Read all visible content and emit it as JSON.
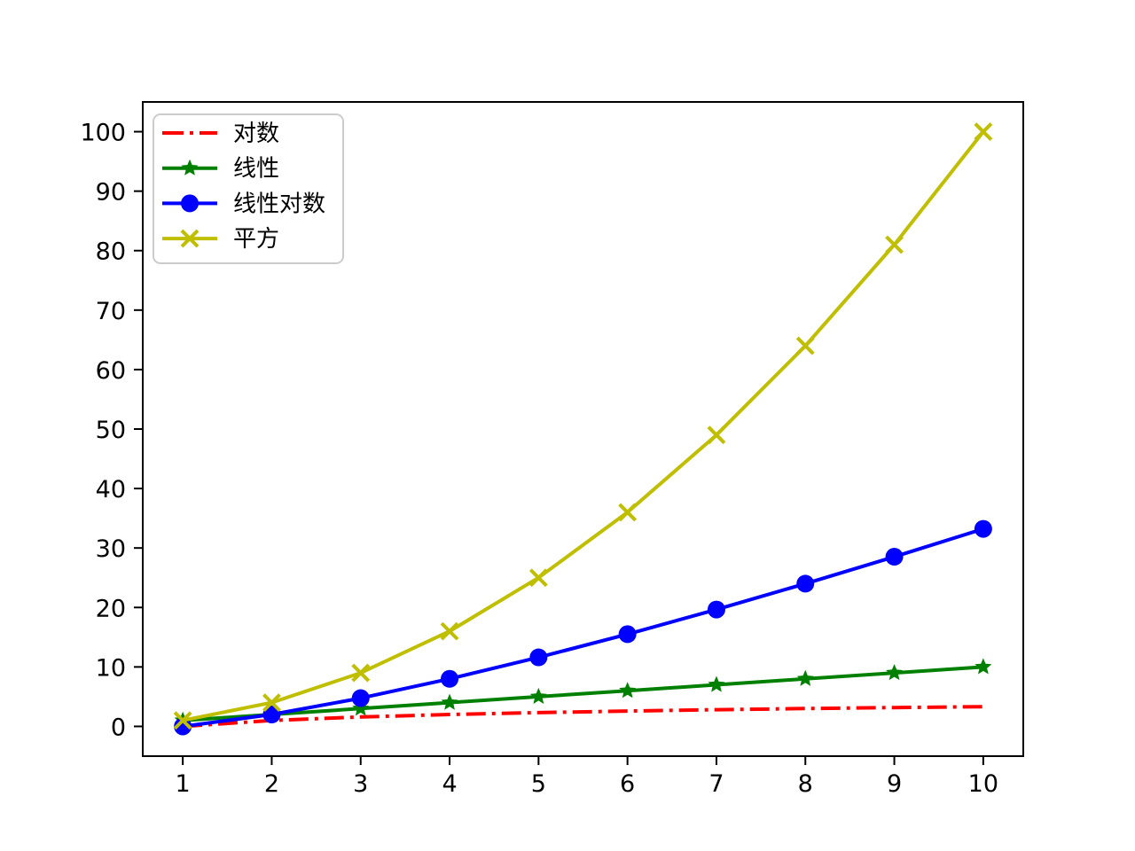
{
  "chart_data": {
    "type": "line",
    "title": "",
    "xlabel": "",
    "ylabel": "",
    "x": [
      1,
      2,
      3,
      4,
      5,
      6,
      7,
      8,
      9,
      10
    ],
    "series": [
      {
        "name": "对数",
        "values": [
          0,
          1,
          1.585,
          2,
          2.322,
          2.585,
          2.807,
          3,
          3.17,
          3.322
        ],
        "color": "#ff0000",
        "linestyle": "dashdot",
        "marker": "none"
      },
      {
        "name": "线性",
        "values": [
          1,
          2,
          3,
          4,
          5,
          6,
          7,
          8,
          9,
          10
        ],
        "color": "#008000",
        "linestyle": "solid",
        "marker": "star"
      },
      {
        "name": "线性对数",
        "values": [
          0,
          2,
          4.755,
          8,
          11.61,
          15.51,
          19.651,
          24,
          28.529,
          33.219
        ],
        "color": "#0000ff",
        "linestyle": "solid",
        "marker": "circle"
      },
      {
        "name": "平方",
        "values": [
          1,
          4,
          9,
          16,
          25,
          36,
          49,
          64,
          81,
          100
        ],
        "color": "#bfbf00",
        "linestyle": "solid",
        "marker": "x"
      }
    ],
    "xlim": [
      0.55,
      10.45
    ],
    "ylim": [
      -5,
      105
    ],
    "xticks": [
      1,
      2,
      3,
      4,
      5,
      6,
      7,
      8,
      9,
      10
    ],
    "yticks": [
      0,
      10,
      20,
      30,
      40,
      50,
      60,
      70,
      80,
      90,
      100
    ],
    "grid": false,
    "legend_position": "upper-left"
  },
  "figure": {
    "background": "#ffffff",
    "axis_color": "#000000",
    "tick_label_color": "#000000",
    "legend_border_color": "#cccccc",
    "legend_background": "#ffffff"
  }
}
